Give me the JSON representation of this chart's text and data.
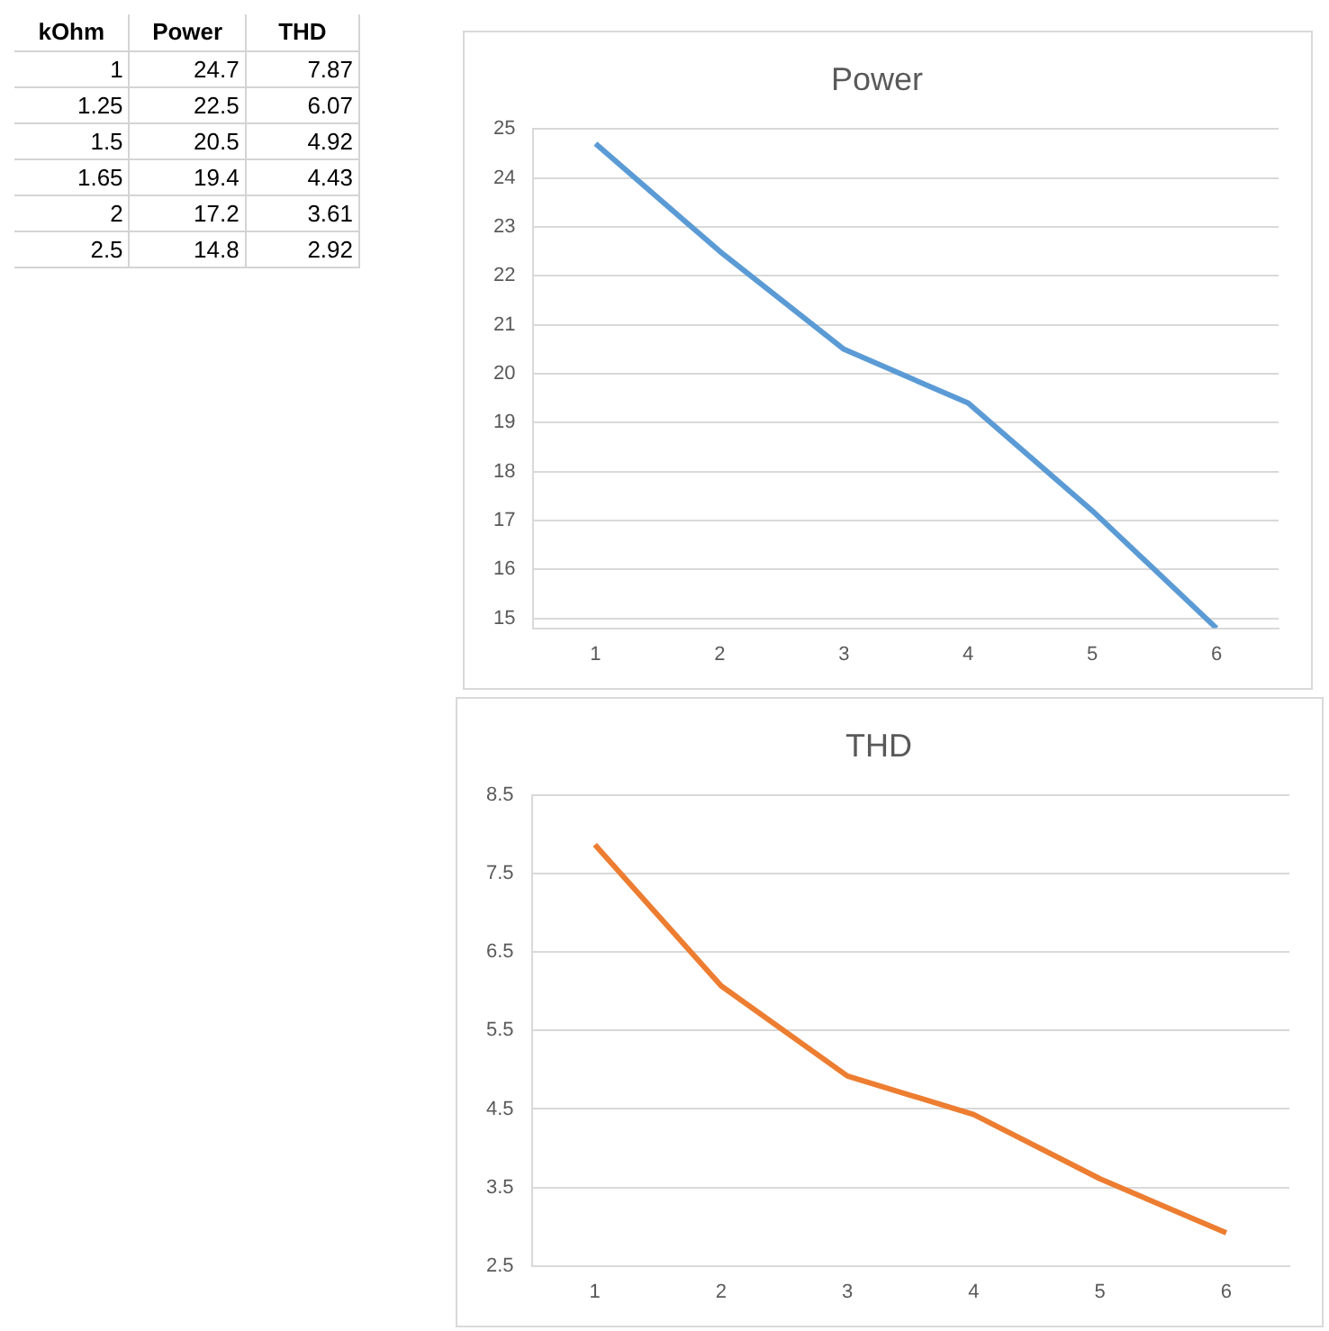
{
  "chart_data": [
    {
      "type": "other",
      "annotations": [
        "kOhm",
        "Power",
        "THD",
        "1",
        "24.7",
        "7.87",
        "1.25",
        "22.5",
        "6.07",
        "1.5",
        "20.5",
        "4.92",
        "1.65",
        "19.4",
        "4.43",
        "2",
        "17.2",
        "3.61",
        "2.5",
        "14.8",
        "2.92"
      ]
    },
    {
      "type": "line",
      "title": "Power",
      "categories": [
        "1",
        "2",
        "3",
        "4",
        "5",
        "6"
      ],
      "series": [
        {
          "color": "#5b9bd5",
          "values": [
            24.7,
            22.5,
            20.5,
            19.4,
            17.2,
            14.8
          ]
        }
      ],
      "ylim": [
        14.8,
        25
      ],
      "yticks": [
        15,
        16,
        17,
        18,
        19,
        20,
        21,
        22,
        23,
        24,
        25
      ],
      "grid": "y",
      "legend": false,
      "marker": "none",
      "line_style": "solid"
    },
    {
      "type": "line",
      "title": "THD",
      "categories": [
        "1",
        "2",
        "3",
        "4",
        "5",
        "6"
      ],
      "series": [
        {
          "color": "#ed7d31",
          "values": [
            7.87,
            6.07,
            4.92,
            4.43,
            3.61,
            2.92
          ]
        }
      ],
      "ylim": [
        2.5,
        8.5
      ],
      "yticks": [
        2.5,
        3.5,
        4.5,
        5.5,
        6.5,
        7.5,
        8.5
      ],
      "grid": "y",
      "legend": false,
      "marker": "none",
      "line_style": "solid"
    }
  ]
}
